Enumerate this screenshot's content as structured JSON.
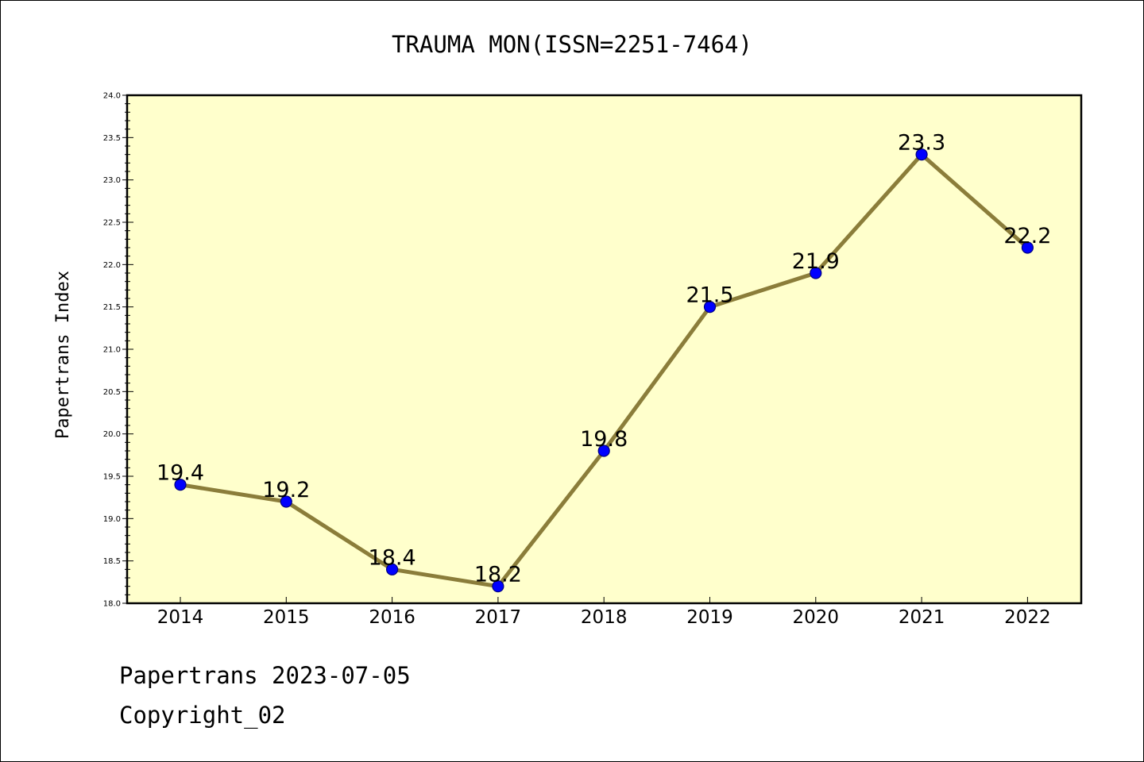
{
  "chart_data": {
    "type": "line",
    "title": "TRAUMA MON(ISSN=2251-7464)",
    "ylabel": "Papertrans Index",
    "xlabel": "",
    "categories": [
      "2014",
      "2015",
      "2016",
      "2017",
      "2018",
      "2019",
      "2020",
      "2021",
      "2022"
    ],
    "series": [
      {
        "values": [
          19.4,
          19.2,
          18.4,
          18.2,
          19.8,
          21.5,
          21.9,
          23.3,
          22.2
        ]
      }
    ],
    "data_labels": [
      "19.4",
      "19.2",
      "18.4",
      "18.2",
      "19.8",
      "21.5",
      "21.9",
      "23.3",
      "22.2"
    ],
    "ylim": [
      18.0,
      24.0
    ],
    "yticks": [
      "18.0",
      "18.5",
      "19.0",
      "19.5",
      "20.0",
      "20.5",
      "21.0",
      "21.5",
      "22.0",
      "22.5",
      "23.0",
      "23.5",
      "24.0"
    ],
    "grid": false,
    "legend": "none",
    "colors": {
      "plot_background": "#ffffcc",
      "line": "#8b7d3a",
      "marker_fill": "#0000ff",
      "marker_edge": "#000080"
    }
  },
  "footer": {
    "date_line": "Papertrans 2023-07-05",
    "copyright": "Copyright_02"
  }
}
